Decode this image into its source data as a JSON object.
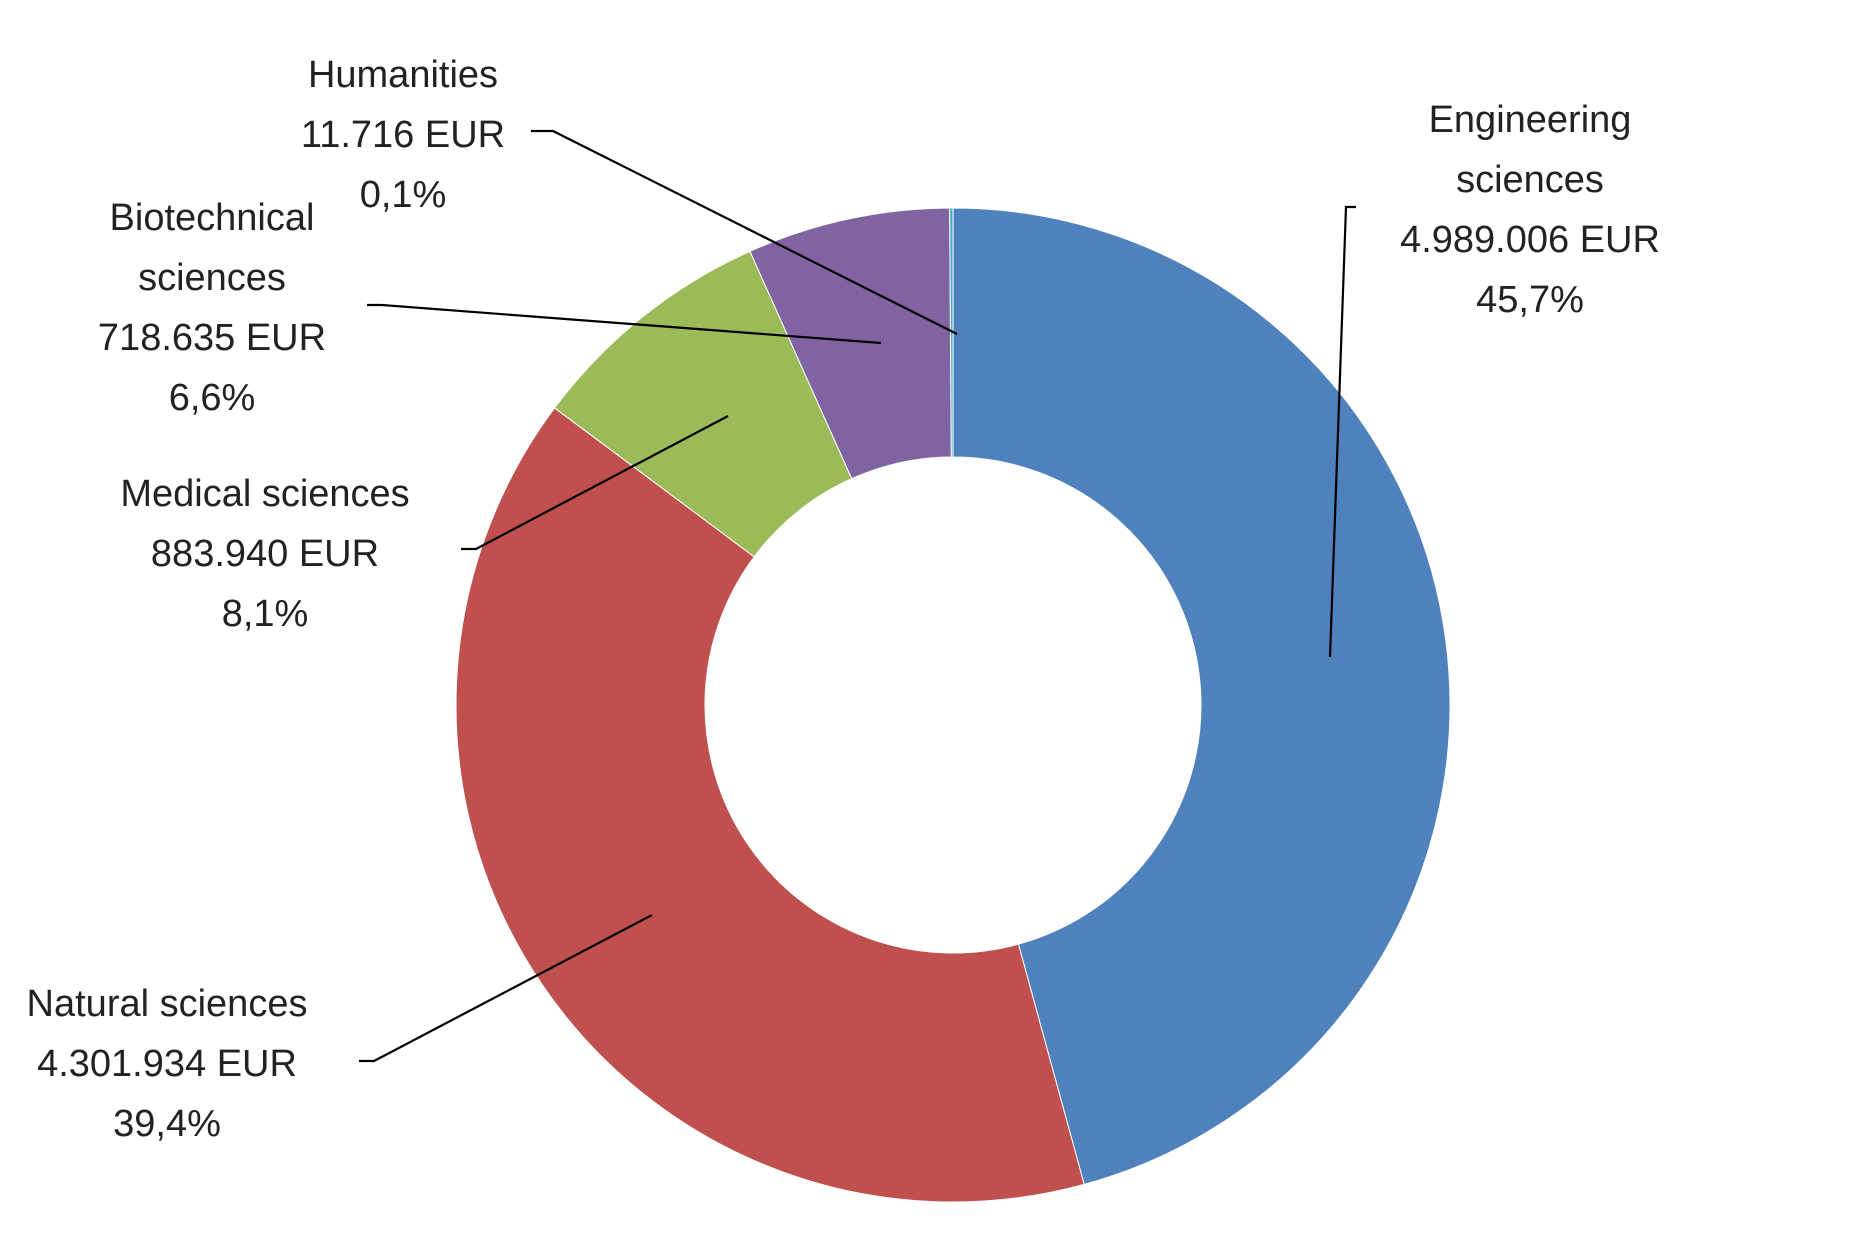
{
  "chart_data": {
    "type": "pie",
    "donut": true,
    "title": "",
    "legend": "none",
    "start_angle_deg": 0,
    "direction": "clockwise",
    "slices": [
      {
        "label_lines": [
          "Engineering",
          "sciences"
        ],
        "value_text": "4.989.006 EUR",
        "percent_text": "45,7%",
        "value": 4989006,
        "percent": 45.7,
        "color": "#4F81BD"
      },
      {
        "label_lines": [
          "Natural sciences"
        ],
        "value_text": "4.301.934 EUR",
        "percent_text": "39,4%",
        "value": 4301934,
        "percent": 39.4,
        "color": "#C0504D"
      },
      {
        "label_lines": [
          "Medical sciences"
        ],
        "value_text": "883.940 EUR",
        "percent_text": "8,1%",
        "value": 883940,
        "percent": 8.1,
        "color": "#9BBB59"
      },
      {
        "label_lines": [
          "Biotechnical",
          "sciences"
        ],
        "value_text": "718.635 EUR",
        "percent_text": "6,6%",
        "value": 718635,
        "percent": 6.6,
        "color": "#8064A2"
      },
      {
        "label_lines": [
          "Humanities"
        ],
        "value_text": "11.716 EUR",
        "percent_text": "0,1%",
        "value": 11716,
        "percent": 0.1,
        "color": "#4BACC6"
      }
    ]
  }
}
